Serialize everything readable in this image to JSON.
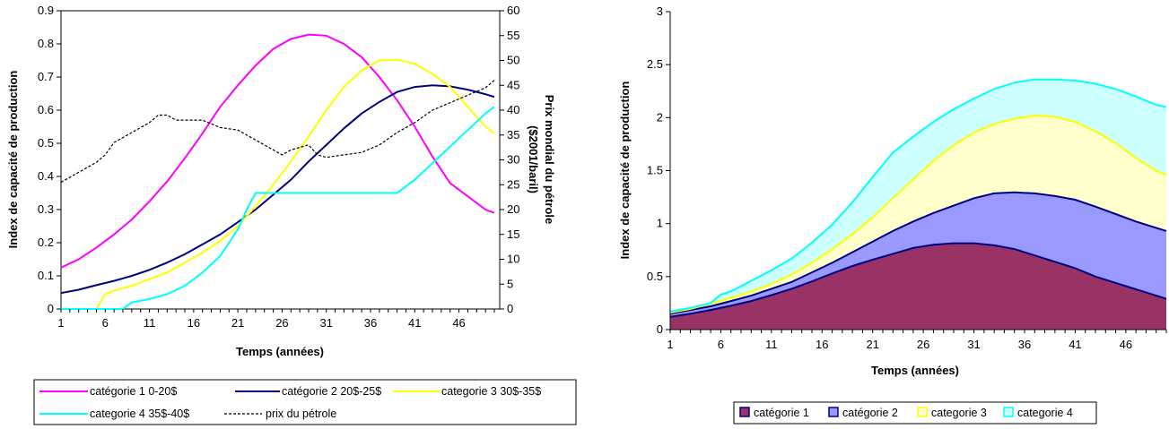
{
  "chart_data": [
    {
      "type": "line",
      "xlabel": "Temps (années)",
      "ylabel": "Index de capacité de production",
      "y2label_line1": "Prix mondial du pétrole",
      "y2label_line2": "($2001/baril)",
      "x_ticks": [
        "1",
        "6",
        "11",
        "16",
        "21",
        "26",
        "31",
        "36",
        "41",
        "46"
      ],
      "x_range": [
        1,
        50
      ],
      "ylim": [
        0,
        0.9
      ],
      "y_ticks": [
        "0",
        "0.1",
        "0.2",
        "0.3",
        "0.4",
        "0.5",
        "0.6",
        "0.7",
        "0.8",
        "0.9"
      ],
      "y2lim": [
        0,
        60
      ],
      "y2_ticks": [
        "0",
        "5",
        "10",
        "15",
        "20",
        "25",
        "30",
        "35",
        "40",
        "45",
        "50",
        "55",
        "60"
      ],
      "legend_position": "bottom",
      "series": [
        {
          "name": "catégorie 1 0-20$",
          "color": "#ff00ff",
          "axis": "left",
          "x": [
            1,
            3,
            5,
            7,
            9,
            11,
            13,
            15,
            17,
            19,
            21,
            23,
            25,
            27,
            29,
            31,
            33,
            35,
            37,
            39,
            41,
            43,
            45,
            47,
            49,
            50
          ],
          "y": [
            0.125,
            0.15,
            0.185,
            0.225,
            0.27,
            0.325,
            0.385,
            0.455,
            0.53,
            0.61,
            0.675,
            0.735,
            0.785,
            0.815,
            0.828,
            0.825,
            0.8,
            0.76,
            0.7,
            0.63,
            0.55,
            0.46,
            0.38,
            0.34,
            0.3,
            0.29
          ]
        },
        {
          "name": "catégorie 2 20$-25$",
          "color": "#000080",
          "axis": "left",
          "x": [
            1,
            3,
            5,
            7,
            9,
            11,
            13,
            15,
            17,
            19,
            21,
            23,
            25,
            27,
            29,
            31,
            33,
            35,
            37,
            39,
            41,
            43,
            45,
            47,
            49,
            50
          ],
          "y": [
            0.048,
            0.058,
            0.072,
            0.085,
            0.1,
            0.118,
            0.14,
            0.165,
            0.195,
            0.225,
            0.262,
            0.3,
            0.345,
            0.39,
            0.445,
            0.495,
            0.545,
            0.59,
            0.625,
            0.655,
            0.67,
            0.675,
            0.672,
            0.662,
            0.648,
            0.64
          ]
        },
        {
          "name": "categorie 3 30$-35$",
          "color": "#ffff00",
          "axis": "left",
          "x": [
            1,
            5,
            6,
            7,
            9,
            11,
            13,
            15,
            17,
            19,
            21,
            23,
            25,
            27,
            29,
            31,
            33,
            35,
            37,
            39,
            41,
            43,
            45,
            47,
            49,
            50
          ],
          "y": [
            0,
            0,
            0.045,
            0.055,
            0.07,
            0.09,
            0.11,
            0.14,
            0.17,
            0.205,
            0.25,
            0.31,
            0.375,
            0.445,
            0.52,
            0.6,
            0.67,
            0.72,
            0.75,
            0.752,
            0.74,
            0.71,
            0.67,
            0.61,
            0.55,
            0.53
          ]
        },
        {
          "name": "categorie 4 35$-40$",
          "color": "#00ffff",
          "axis": "left",
          "x": [
            1,
            8,
            9,
            11,
            13,
            15,
            17,
            19,
            21,
            22,
            23,
            39,
            41,
            43,
            45,
            47,
            49,
            50
          ],
          "y": [
            0,
            0,
            0.02,
            0.03,
            0.045,
            0.07,
            0.11,
            0.16,
            0.24,
            0.3,
            0.35,
            0.35,
            0.39,
            0.44,
            0.49,
            0.54,
            0.59,
            0.61
          ]
        },
        {
          "name": "prix du pétrole",
          "color": "#000000",
          "axis": "right",
          "dash": true,
          "x": [
            1,
            3,
            5,
            6,
            7,
            9,
            11,
            12,
            13,
            14,
            15,
            17,
            19,
            21,
            23,
            25,
            26,
            27,
            29,
            30,
            31,
            33,
            35,
            37,
            39,
            41,
            43,
            45,
            47,
            49,
            50
          ],
          "y": [
            25.5,
            27.5,
            29.5,
            31,
            33.5,
            35.5,
            37.5,
            39,
            39,
            38,
            38,
            38,
            36.5,
            36,
            34,
            32,
            31,
            32,
            33,
            31,
            30.5,
            31,
            31.5,
            33,
            35.5,
            37.5,
            40,
            41.5,
            43,
            44.5,
            46
          ]
        }
      ]
    },
    {
      "type": "area",
      "stacked": true,
      "xlabel": "Temps (années)",
      "ylabel": "Index de capacité de production",
      "x_ticks": [
        "1",
        "6",
        "11",
        "16",
        "21",
        "26",
        "31",
        "36",
        "41",
        "46"
      ],
      "x_range": [
        1,
        50
      ],
      "ylim": [
        0,
        3
      ],
      "y_ticks": [
        "0",
        "0.5",
        "1",
        "1.5",
        "2",
        "2.5",
        "3"
      ],
      "legend_position": "bottom",
      "series": [
        {
          "name": "catégorie 1",
          "fill": "#993366",
          "line": "#000080",
          "x": [
            1,
            3,
            5,
            7,
            9,
            11,
            13,
            15,
            17,
            19,
            21,
            23,
            25,
            27,
            29,
            31,
            33,
            35,
            37,
            39,
            41,
            43,
            45,
            47,
            49,
            50
          ],
          "y": [
            0.12,
            0.15,
            0.185,
            0.225,
            0.27,
            0.325,
            0.385,
            0.455,
            0.53,
            0.6,
            0.66,
            0.715,
            0.77,
            0.8,
            0.815,
            0.815,
            0.795,
            0.76,
            0.7,
            0.64,
            0.58,
            0.5,
            0.44,
            0.38,
            0.32,
            0.29
          ]
        },
        {
          "name": "catégorie 2",
          "fill": "#9999ff",
          "line": "#000080",
          "x": [
            1,
            3,
            5,
            7,
            9,
            11,
            13,
            15,
            17,
            19,
            21,
            23,
            25,
            27,
            29,
            31,
            33,
            35,
            37,
            39,
            41,
            43,
            45,
            47,
            49,
            50
          ],
          "y": [
            0.15,
            0.185,
            0.22,
            0.27,
            0.32,
            0.385,
            0.45,
            0.54,
            0.63,
            0.73,
            0.83,
            0.93,
            1.02,
            1.1,
            1.17,
            1.24,
            1.285,
            1.295,
            1.285,
            1.26,
            1.225,
            1.16,
            1.09,
            1.02,
            0.96,
            0.93
          ]
        },
        {
          "name": "categorie 3",
          "fill": "#ffffcc",
          "line": "#ffff00",
          "x": [
            1,
            3,
            5,
            7,
            9,
            11,
            13,
            15,
            17,
            19,
            21,
            23,
            25,
            27,
            29,
            31,
            33,
            35,
            37,
            39,
            41,
            43,
            45,
            47,
            49,
            50
          ],
          "y": [
            0.16,
            0.195,
            0.245,
            0.3,
            0.36,
            0.43,
            0.52,
            0.63,
            0.76,
            0.9,
            1.06,
            1.24,
            1.42,
            1.59,
            1.74,
            1.86,
            1.94,
            1.99,
            2.02,
            2.01,
            1.96,
            1.87,
            1.76,
            1.62,
            1.5,
            1.46
          ]
        },
        {
          "name": "categorie 4",
          "fill": "#ccffff",
          "line": "#00ffff",
          "x": [
            1,
            3,
            5,
            6,
            7,
            9,
            11,
            13,
            15,
            17,
            19,
            21,
            23,
            25,
            27,
            29,
            31,
            33,
            35,
            37,
            39,
            41,
            43,
            45,
            47,
            49,
            50
          ],
          "y": [
            0.17,
            0.205,
            0.25,
            0.33,
            0.36,
            0.46,
            0.56,
            0.67,
            0.82,
            0.99,
            1.2,
            1.44,
            1.67,
            1.82,
            1.96,
            2.08,
            2.18,
            2.27,
            2.33,
            2.36,
            2.36,
            2.35,
            2.32,
            2.27,
            2.2,
            2.12,
            2.1
          ]
        }
      ]
    }
  ]
}
